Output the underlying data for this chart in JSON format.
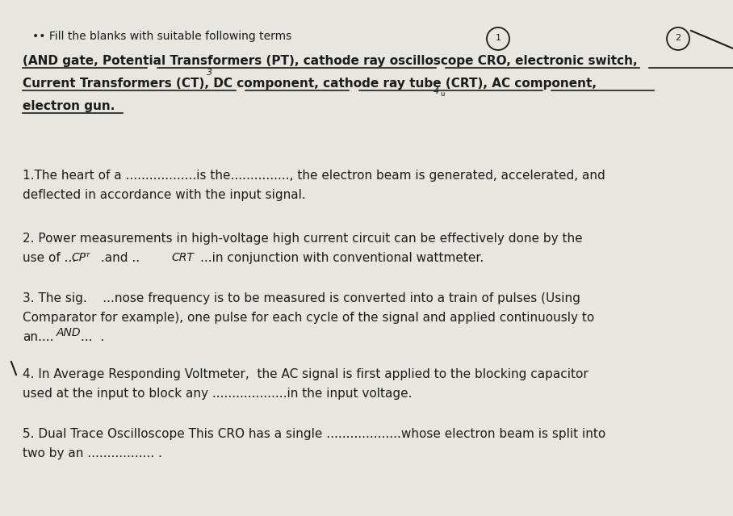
{
  "bg_color": "#e8e6e1",
  "text_color": "#1c1c1c",
  "title_prefix": "•• Fill the blanks with suitable following terms",
  "terms_line1": "(AND gate, Potential Transformers (PT), cathode ray oscilloscope CRO, electronic switch,",
  "terms_line2": "Current Transformers (CT), DC component, cathode ray tube (CRT), AC component,",
  "terms_line3": "electron gun.",
  "q1_line1": "1.The heart of a ..................is the..............., the electron beam is generated, accelerated, and",
  "q1_line2": "deflected in accordance with the input signal.",
  "q2_line1": "2. Power measurements in high-voltage high current circuit can be effectively done by the",
  "q2_line2": "use of ....CP.T. .and ..  CRT....in conjunction with conventional wattmeter.",
  "q3_line1": "3. The sig.    ...nose frequency is to be measured is converted into a train of pulses (Using",
  "q3_line2": "Comparator for example), one pulse for each cycle of the signal and applied continuously to",
  "q3_line3": "an....AND...",
  "q4_line1": "4. In Average Responding Voltmeter,  the AC signal is first applied to the blocking capacitor",
  "q4_line2": "used at the input to block any ...................in the input voltage.",
  "q5_line1": "5. Dual Trace Oscilloscope This CRO has a single ...................whose electron beam is split into",
  "q5_line2": "two by an ................. .",
  "title_fs": 10,
  "terms_fs": 11,
  "body_fs": 11,
  "fig_w": 9.08,
  "fig_h": 6.39,
  "dpi": 100
}
